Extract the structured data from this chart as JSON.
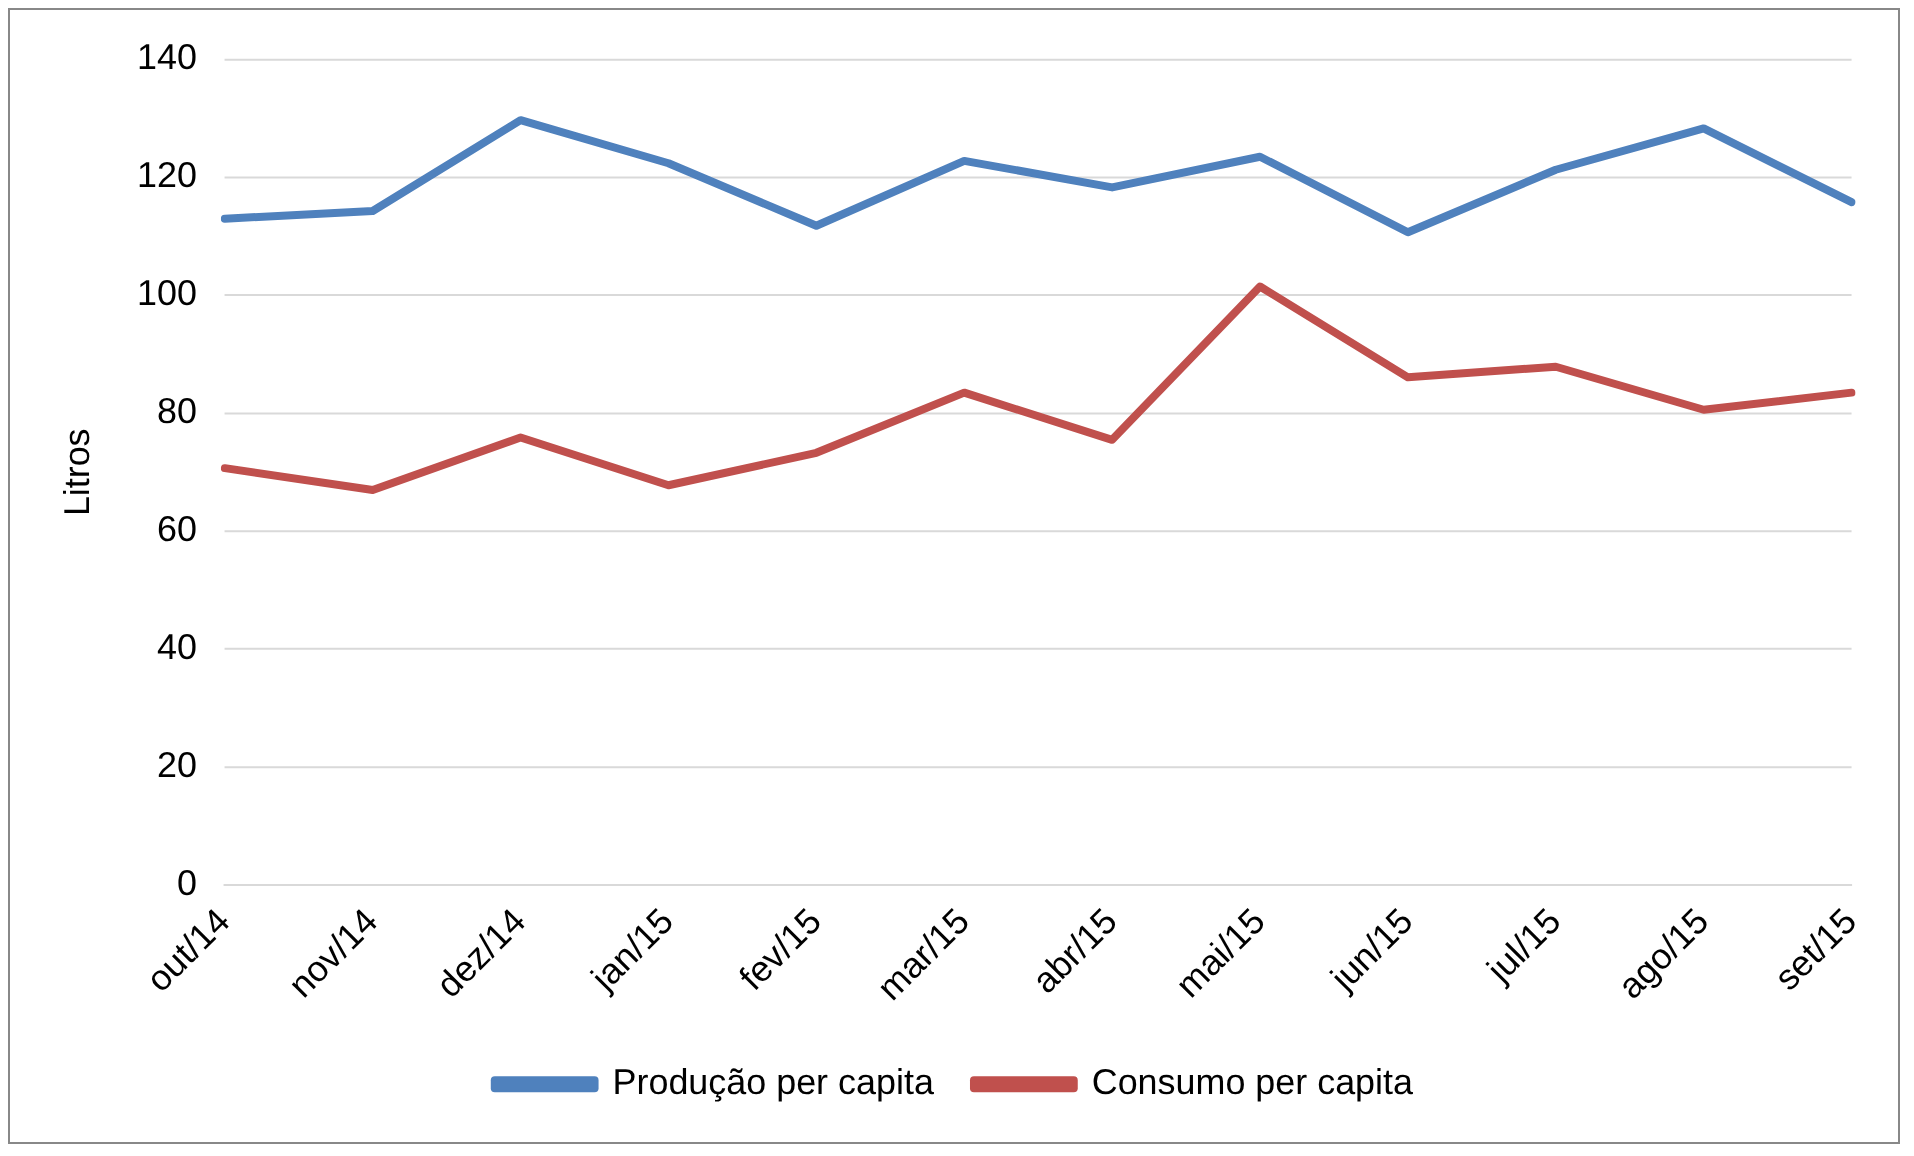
{
  "chart_data": {
    "type": "line",
    "ylabel": "Litros",
    "categories": [
      "out/14",
      "nov/14",
      "dez/14",
      "jan/15",
      "fev/15",
      "mar/15",
      "abr/15",
      "mai/15",
      "jun/15",
      "jul/15",
      "ago/15",
      "set/15"
    ],
    "series": [
      {
        "name": "Produção per capita",
        "color": "#4f81bd",
        "values": [
          113,
          114.3,
          129.7,
          122.4,
          111.8,
          122.8,
          118.3,
          123.5,
          110.7,
          121.3,
          128.3,
          115.8
        ]
      },
      {
        "name": "Consumo per capita",
        "color": "#c0504d",
        "values": [
          70.7,
          67,
          75.9,
          67.8,
          73.3,
          83.5,
          75.5,
          101.5,
          86.1,
          87.9,
          80.6,
          83.5
        ]
      }
    ],
    "ylim": [
      0,
      140
    ],
    "yticks": [
      0,
      20,
      40,
      60,
      80,
      100,
      120,
      140
    ],
    "grid": "y",
    "legend": "bottom",
    "marker": "none",
    "line_style": "solid"
  }
}
